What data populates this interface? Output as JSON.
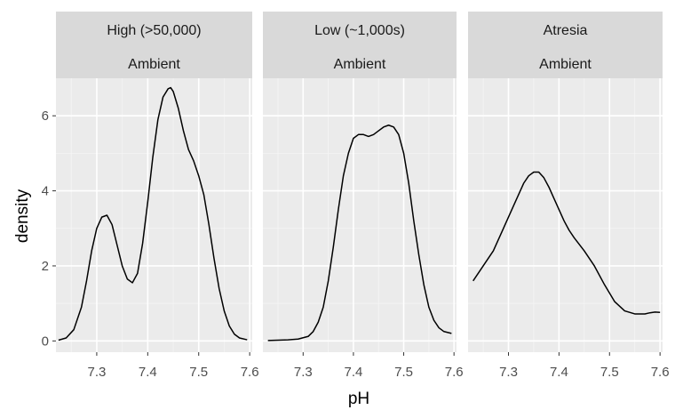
{
  "chart_data": {
    "type": "line",
    "xlabel": "pH",
    "ylabel": "density",
    "xlim": [
      7.22,
      7.605
    ],
    "ylim": [
      -0.3,
      7.0
    ],
    "x_ticks": [
      "7.3",
      "7.4",
      "7.5",
      "7.6"
    ],
    "y_ticks": [
      "0",
      "2",
      "4",
      "6"
    ],
    "grid": true,
    "panels": [
      {
        "strip_top": "High (>50,000)",
        "strip_bottom": "Ambient",
        "x": [
          7.225,
          7.24,
          7.255,
          7.27,
          7.28,
          7.29,
          7.3,
          7.31,
          7.32,
          7.33,
          7.34,
          7.35,
          7.36,
          7.37,
          7.38,
          7.39,
          7.4,
          7.41,
          7.42,
          7.43,
          7.44,
          7.445,
          7.45,
          7.46,
          7.47,
          7.48,
          7.49,
          7.5,
          7.51,
          7.52,
          7.53,
          7.54,
          7.55,
          7.56,
          7.57,
          7.58,
          7.595
        ],
        "y": [
          0.02,
          0.08,
          0.3,
          0.9,
          1.6,
          2.4,
          3.0,
          3.3,
          3.35,
          3.1,
          2.55,
          2.0,
          1.65,
          1.55,
          1.8,
          2.6,
          3.7,
          4.9,
          5.9,
          6.5,
          6.72,
          6.75,
          6.65,
          6.2,
          5.6,
          5.1,
          4.8,
          4.4,
          3.9,
          3.1,
          2.2,
          1.4,
          0.8,
          0.4,
          0.18,
          0.08,
          0.03
        ]
      },
      {
        "strip_top": "Low (~1,000s)",
        "strip_bottom": "Ambient",
        "x": [
          7.23,
          7.25,
          7.27,
          7.29,
          7.31,
          7.32,
          7.33,
          7.34,
          7.35,
          7.36,
          7.37,
          7.38,
          7.39,
          7.4,
          7.41,
          7.42,
          7.43,
          7.44,
          7.45,
          7.46,
          7.47,
          7.48,
          7.49,
          7.5,
          7.51,
          7.52,
          7.53,
          7.54,
          7.55,
          7.56,
          7.57,
          7.58,
          7.595
        ],
        "y": [
          0.01,
          0.02,
          0.03,
          0.05,
          0.12,
          0.25,
          0.5,
          0.9,
          1.6,
          2.5,
          3.5,
          4.4,
          5.0,
          5.4,
          5.5,
          5.5,
          5.45,
          5.5,
          5.6,
          5.7,
          5.75,
          5.7,
          5.5,
          5.0,
          4.2,
          3.2,
          2.3,
          1.5,
          0.9,
          0.55,
          0.35,
          0.25,
          0.2
        ]
      },
      {
        "strip_top": "Atresia",
        "strip_bottom": "Ambient",
        "x": [
          7.23,
          7.25,
          7.27,
          7.29,
          7.31,
          7.33,
          7.34,
          7.35,
          7.36,
          7.37,
          7.38,
          7.39,
          7.4,
          7.41,
          7.42,
          7.43,
          7.45,
          7.47,
          7.49,
          7.51,
          7.53,
          7.55,
          7.57,
          7.58,
          7.59,
          7.6
        ],
        "y": [
          1.6,
          2.0,
          2.4,
          3.0,
          3.6,
          4.2,
          4.4,
          4.5,
          4.5,
          4.35,
          4.1,
          3.8,
          3.5,
          3.2,
          2.95,
          2.75,
          2.4,
          2.0,
          1.5,
          1.05,
          0.8,
          0.72,
          0.72,
          0.75,
          0.77,
          0.76
        ]
      }
    ]
  }
}
